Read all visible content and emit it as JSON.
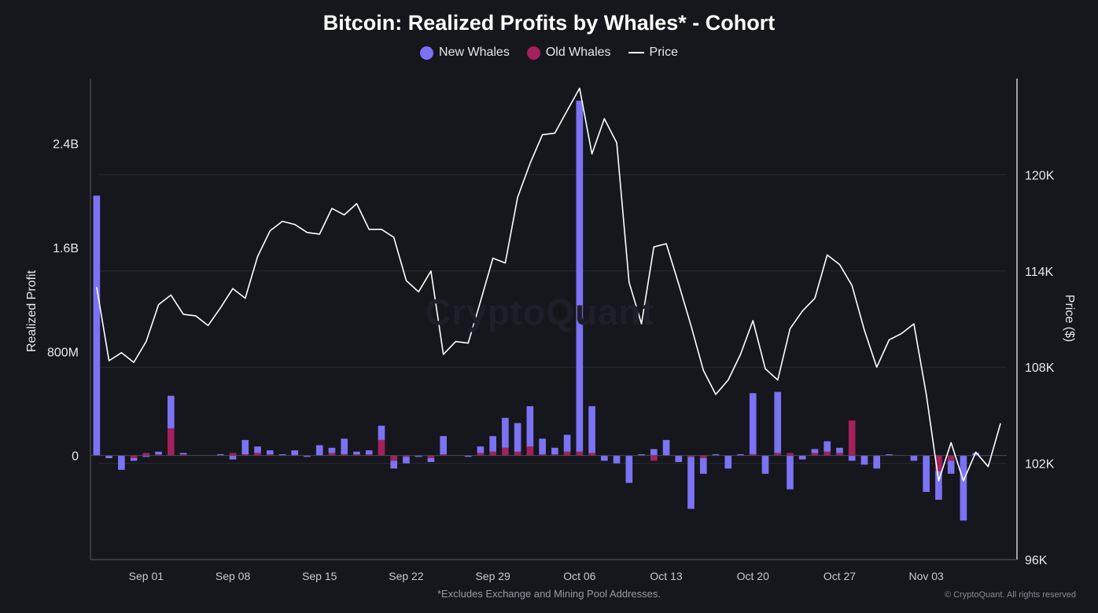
{
  "page": {
    "footnote": "*Excludes Exchange and Mining Pool Addresses.",
    "copyright": "© CryptoQuant. All rights reserved",
    "watermark": "CryptoQuant"
  },
  "colors": {
    "background": "#16161d",
    "new_whales": "#7b72f4",
    "old_whales": "#a3215c",
    "price": "#ffffff",
    "grid": "#2a2a33",
    "axis": "#c8c8d0"
  },
  "chart_data": {
    "type": "bar",
    "title": "Bitcoin: Realized Profits by Whales* - Cohort",
    "ylabel": "Realized Profit",
    "y2label": "Price ($)",
    "ylim": [
      -0.8,
      2.9
    ],
    "y2lim": [
      96000,
      126000
    ],
    "y_ticks": [
      0,
      0.8,
      1.6,
      2.4
    ],
    "y_tick_labels": [
      "0",
      "800M",
      "1.6B",
      "2.4B"
    ],
    "y2_ticks": [
      96000,
      102000,
      108000,
      114000,
      120000
    ],
    "y2_tick_labels": [
      "96K",
      "102K",
      "108K",
      "114K",
      "120K"
    ],
    "x_tick_indices": [
      4,
      11,
      18,
      25,
      32,
      39,
      46,
      53,
      60,
      67
    ],
    "x_tick_labels": [
      "Sep 01",
      "Sep 08",
      "Sep 15",
      "Sep 22",
      "Sep 29",
      "Oct 06",
      "Oct 13",
      "Oct 20",
      "Oct 27",
      "Nov 03"
    ],
    "legend": [
      "New Whales",
      "Old Whales",
      "Price"
    ],
    "categories": [
      "Aug 28",
      "Aug 29",
      "Aug 30",
      "Aug 31",
      "Sep 01",
      "Sep 02",
      "Sep 03",
      "Sep 04",
      "Sep 05",
      "Sep 06",
      "Sep 07",
      "Sep 08",
      "Sep 09",
      "Sep 10",
      "Sep 11",
      "Sep 12",
      "Sep 13",
      "Sep 14",
      "Sep 15",
      "Sep 16",
      "Sep 17",
      "Sep 18",
      "Sep 19",
      "Sep 20",
      "Sep 21",
      "Sep 22",
      "Sep 23",
      "Sep 24",
      "Sep 25",
      "Sep 26",
      "Sep 27",
      "Sep 28",
      "Sep 29",
      "Sep 30",
      "Oct 01",
      "Oct 02",
      "Oct 03",
      "Oct 04",
      "Oct 05",
      "Oct 06",
      "Oct 07",
      "Oct 08",
      "Oct 09",
      "Oct 10",
      "Oct 11",
      "Oct 12",
      "Oct 13",
      "Oct 14",
      "Oct 15",
      "Oct 16",
      "Oct 17",
      "Oct 18",
      "Oct 19",
      "Oct 20",
      "Oct 21",
      "Oct 22",
      "Oct 23",
      "Oct 24",
      "Oct 25",
      "Oct 26",
      "Oct 27",
      "Oct 28",
      "Oct 29",
      "Oct 30",
      "Oct 31",
      "Nov 01",
      "Nov 02",
      "Nov 03",
      "Nov 04",
      "Nov 05",
      "Nov 06",
      "Nov 07",
      "Nov 08",
      "Nov 09"
    ],
    "series": [
      {
        "name": "New Whales",
        "unit": "B",
        "values": [
          2.0,
          -0.02,
          -0.11,
          -0.02,
          -0.01,
          0.02,
          0.25,
          0.01,
          0,
          0,
          0.01,
          -0.03,
          0.11,
          0.05,
          0.03,
          0.01,
          0.04,
          -0.01,
          0.08,
          0.04,
          0.12,
          0.02,
          0.03,
          0.11,
          -0.06,
          -0.05,
          -0.01,
          -0.03,
          0.14,
          0,
          -0.01,
          0.05,
          0.12,
          0.23,
          0.22,
          0.31,
          0.12,
          0.05,
          0.13,
          2.7,
          0.36,
          -0.04,
          -0.06,
          -0.21,
          0.01,
          0.05,
          0.12,
          -0.05,
          -0.4,
          -0.12,
          0.01,
          -0.1,
          0.01,
          0.47,
          -0.14,
          0.47,
          -0.26,
          -0.03,
          0.03,
          0.08,
          0.04,
          -0.04,
          -0.07,
          -0.1,
          0.01,
          0,
          -0.04,
          -0.28,
          -0.22,
          -0.1,
          -0.5,
          0.02,
          0,
          0
        ]
      },
      {
        "name": "Old Whales",
        "unit": "B",
        "values": [
          0,
          0,
          0,
          -0.02,
          0.02,
          0.01,
          0.21,
          0.01,
          0,
          0,
          0,
          0.02,
          0.01,
          0.02,
          0.01,
          0,
          0,
          0,
          0,
          0.02,
          0.01,
          0.01,
          0.01,
          0.12,
          -0.04,
          -0.01,
          0,
          -0.02,
          0.01,
          0,
          0,
          0.02,
          0.03,
          0.06,
          0.03,
          0.07,
          0.01,
          0.01,
          0.03,
          0.03,
          0.02,
          0,
          0,
          0,
          0,
          -0.04,
          0,
          0,
          -0.01,
          -0.02,
          0,
          0,
          0,
          0.01,
          0,
          0.02,
          0.02,
          0,
          0.02,
          0.03,
          0.02,
          0.27,
          0,
          0,
          0,
          0,
          0,
          0,
          -0.12,
          -0.04,
          0,
          0,
          0,
          0
        ]
      },
      {
        "name": "Price",
        "unit": "USD",
        "values": [
          113000,
          108400,
          108900,
          108300,
          109600,
          111900,
          112500,
          111300,
          111200,
          110600,
          111700,
          112900,
          112300,
          114900,
          116500,
          117100,
          116900,
          116400,
          116300,
          117900,
          117500,
          118200,
          116600,
          116600,
          116100,
          113400,
          112700,
          114000,
          108800,
          109600,
          109500,
          112100,
          114800,
          114500,
          118600,
          120700,
          122500,
          122600,
          124000,
          125400,
          121300,
          123500,
          122000,
          113300,
          110700,
          115500,
          115700,
          113200,
          110600,
          107800,
          106300,
          107200,
          108800,
          110900,
          107900,
          107200,
          110400,
          111500,
          112300,
          115000,
          114400,
          113100,
          110300,
          108000,
          109700,
          110100,
          110700,
          106300,
          100900,
          103300,
          100900,
          102700,
          101800,
          104500
        ]
      }
    ]
  }
}
